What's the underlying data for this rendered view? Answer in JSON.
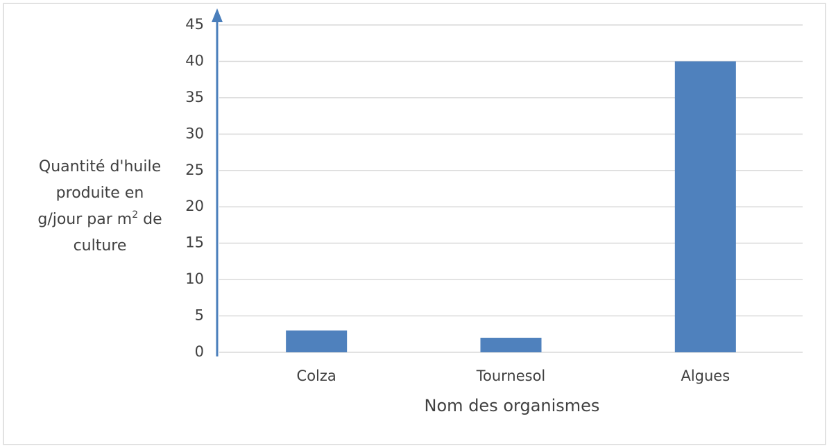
{
  "chart_data": {
    "type": "bar",
    "x_label": "Nom des organismes",
    "y_label": {
      "line1": "Quantité d'huile",
      "line2": "produite en",
      "line3": "g/jour par m",
      "superscript": "2",
      "line3_end": "de",
      "line4": "culture"
    },
    "categories": [
      "Colza",
      "Tournesol",
      "Algues"
    ],
    "values": [
      3,
      2,
      40
    ],
    "color": "#4f81bd",
    "ylim": [
      0,
      45
    ],
    "yticks": [
      0,
      5,
      10,
      15,
      20,
      25,
      30,
      35,
      40,
      45
    ],
    "grid": true
  }
}
